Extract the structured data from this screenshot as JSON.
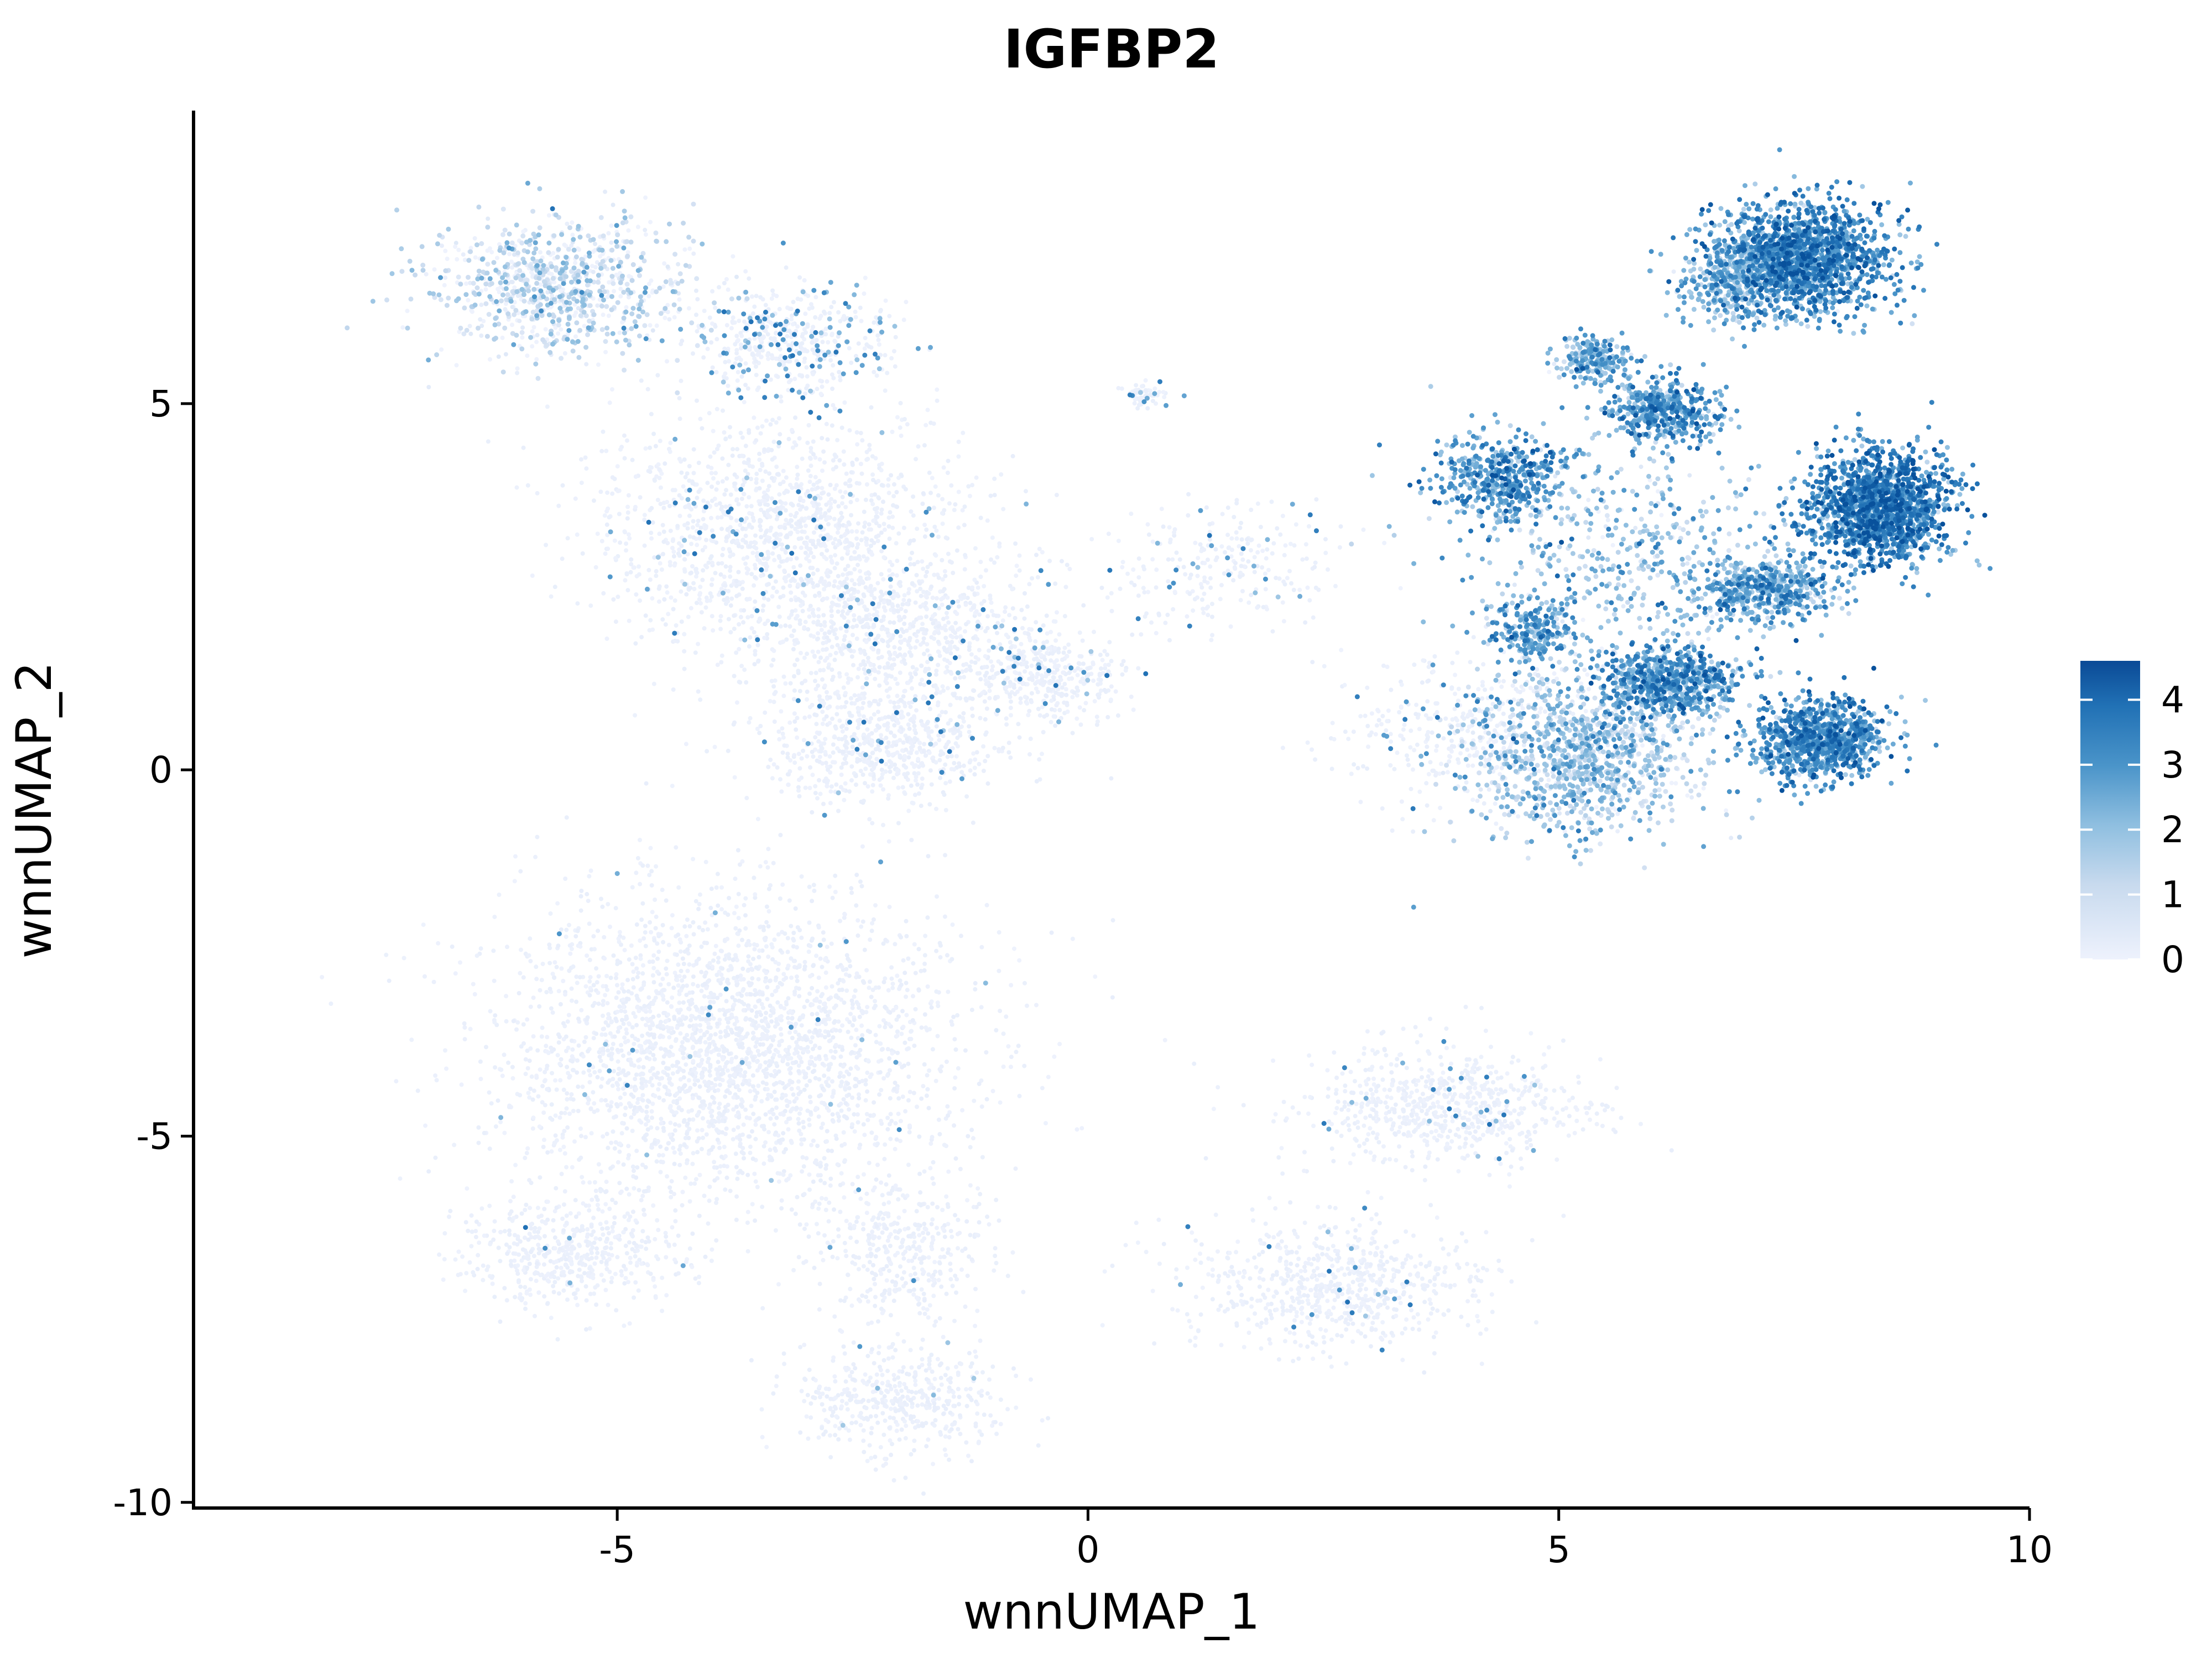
{
  "chart_data": {
    "type": "scatter",
    "title": "IGFBP2",
    "xlabel": "wnnUMAP_1",
    "ylabel": "wnnUMAP_2",
    "xlim": [
      -9.5,
      10
    ],
    "ylim": [
      -10.1,
      9
    ],
    "x_ticks": [
      -5,
      0,
      5,
      10
    ],
    "x_tick_labels": [
      "-5",
      "0",
      "5",
      "10"
    ],
    "y_ticks": [
      -10,
      -5,
      0,
      5
    ],
    "y_tick_labels": [
      "-10",
      "-5",
      "0",
      "5"
    ],
    "grid": false,
    "legend": {
      "placement": "right",
      "type": "colorbar",
      "ticks": [
        0,
        1,
        2,
        3,
        4
      ],
      "tick_labels": [
        "0",
        "1",
        "2",
        "3",
        "4"
      ],
      "range": [
        0,
        4.6
      ],
      "low_color": "#eef2fd",
      "high_color": "#0a4a96"
    },
    "point_color_scale": [
      "#eef2fd",
      "#c8daee",
      "#8fbfe0",
      "#4a94c9",
      "#2171b5",
      "#08519c"
    ],
    "clusters": [
      {
        "x": -5.6,
        "y": 6.6,
        "sx": 0.9,
        "sy": 0.6,
        "expr": 0.6,
        "n": 900
      },
      {
        "x": -3.2,
        "y": 5.9,
        "sx": 0.7,
        "sy": 0.5,
        "expr": 0.4,
        "n": 500
      },
      {
        "x": -3.3,
        "y": 3.3,
        "sx": 1.3,
        "sy": 1.0,
        "expr": 0.08,
        "n": 1400
      },
      {
        "x": -2.0,
        "y": 1.8,
        "sx": 1.1,
        "sy": 0.8,
        "expr": 0.08,
        "n": 900
      },
      {
        "x": -2.2,
        "y": 0.3,
        "sx": 0.8,
        "sy": 0.5,
        "expr": 0.06,
        "n": 600
      },
      {
        "x": -0.4,
        "y": 1.3,
        "sx": 0.5,
        "sy": 0.4,
        "expr": 0.1,
        "n": 350
      },
      {
        "x": 0.6,
        "y": 5.1,
        "sx": 0.15,
        "sy": 0.1,
        "expr": 0.3,
        "n": 60
      },
      {
        "x": 1.5,
        "y": 2.8,
        "sx": 0.9,
        "sy": 0.6,
        "expr": 0.15,
        "n": 250
      },
      {
        "x": -3.9,
        "y": -3.8,
        "sx": 1.6,
        "sy": 1.4,
        "expr": 0.02,
        "n": 2800
      },
      {
        "x": -5.5,
        "y": -6.6,
        "sx": 0.8,
        "sy": 0.5,
        "expr": 0.02,
        "n": 500
      },
      {
        "x": -2.0,
        "y": -8.6,
        "sx": 0.7,
        "sy": 0.5,
        "expr": 0.02,
        "n": 450
      },
      {
        "x": -2.0,
        "y": -6.6,
        "sx": 0.6,
        "sy": 0.8,
        "expr": 0.02,
        "n": 400
      },
      {
        "x": 3.8,
        "y": -4.6,
        "sx": 1.0,
        "sy": 0.5,
        "expr": 0.06,
        "n": 700
      },
      {
        "x": 2.6,
        "y": -7.0,
        "sx": 1.0,
        "sy": 0.6,
        "expr": 0.04,
        "n": 700
      },
      {
        "x": 7.6,
        "y": 7.0,
        "sx": 0.6,
        "sy": 0.5,
        "expr": 2.9,
        "n": 1500
      },
      {
        "x": 6.9,
        "y": 6.7,
        "sx": 0.4,
        "sy": 0.4,
        "expr": 1.8,
        "n": 400
      },
      {
        "x": 6.1,
        "y": 4.9,
        "sx": 0.4,
        "sy": 0.3,
        "expr": 2.6,
        "n": 450
      },
      {
        "x": 5.4,
        "y": 5.6,
        "sx": 0.25,
        "sy": 0.2,
        "expr": 2.0,
        "n": 220
      },
      {
        "x": 4.4,
        "y": 4.0,
        "sx": 0.45,
        "sy": 0.4,
        "expr": 2.6,
        "n": 450
      },
      {
        "x": 8.4,
        "y": 3.6,
        "sx": 0.5,
        "sy": 0.5,
        "expr": 3.1,
        "n": 1500
      },
      {
        "x": 7.2,
        "y": 2.5,
        "sx": 0.5,
        "sy": 0.3,
        "expr": 2.3,
        "n": 500
      },
      {
        "x": 7.8,
        "y": 0.4,
        "sx": 0.45,
        "sy": 0.35,
        "expr": 2.8,
        "n": 900
      },
      {
        "x": 6.2,
        "y": 1.2,
        "sx": 0.5,
        "sy": 0.3,
        "expr": 2.6,
        "n": 650
      },
      {
        "x": 5.3,
        "y": 0.2,
        "sx": 0.9,
        "sy": 0.7,
        "expr": 1.4,
        "n": 1100
      },
      {
        "x": 4.7,
        "y": 1.9,
        "sx": 0.3,
        "sy": 0.3,
        "expr": 2.4,
        "n": 220
      },
      {
        "x": 5.8,
        "y": 3.0,
        "sx": 1.2,
        "sy": 1.0,
        "expr": 1.6,
        "n": 500
      },
      {
        "x": 4.1,
        "y": 0.6,
        "sx": 0.9,
        "sy": 0.8,
        "expr": 0.2,
        "n": 400
      }
    ]
  }
}
